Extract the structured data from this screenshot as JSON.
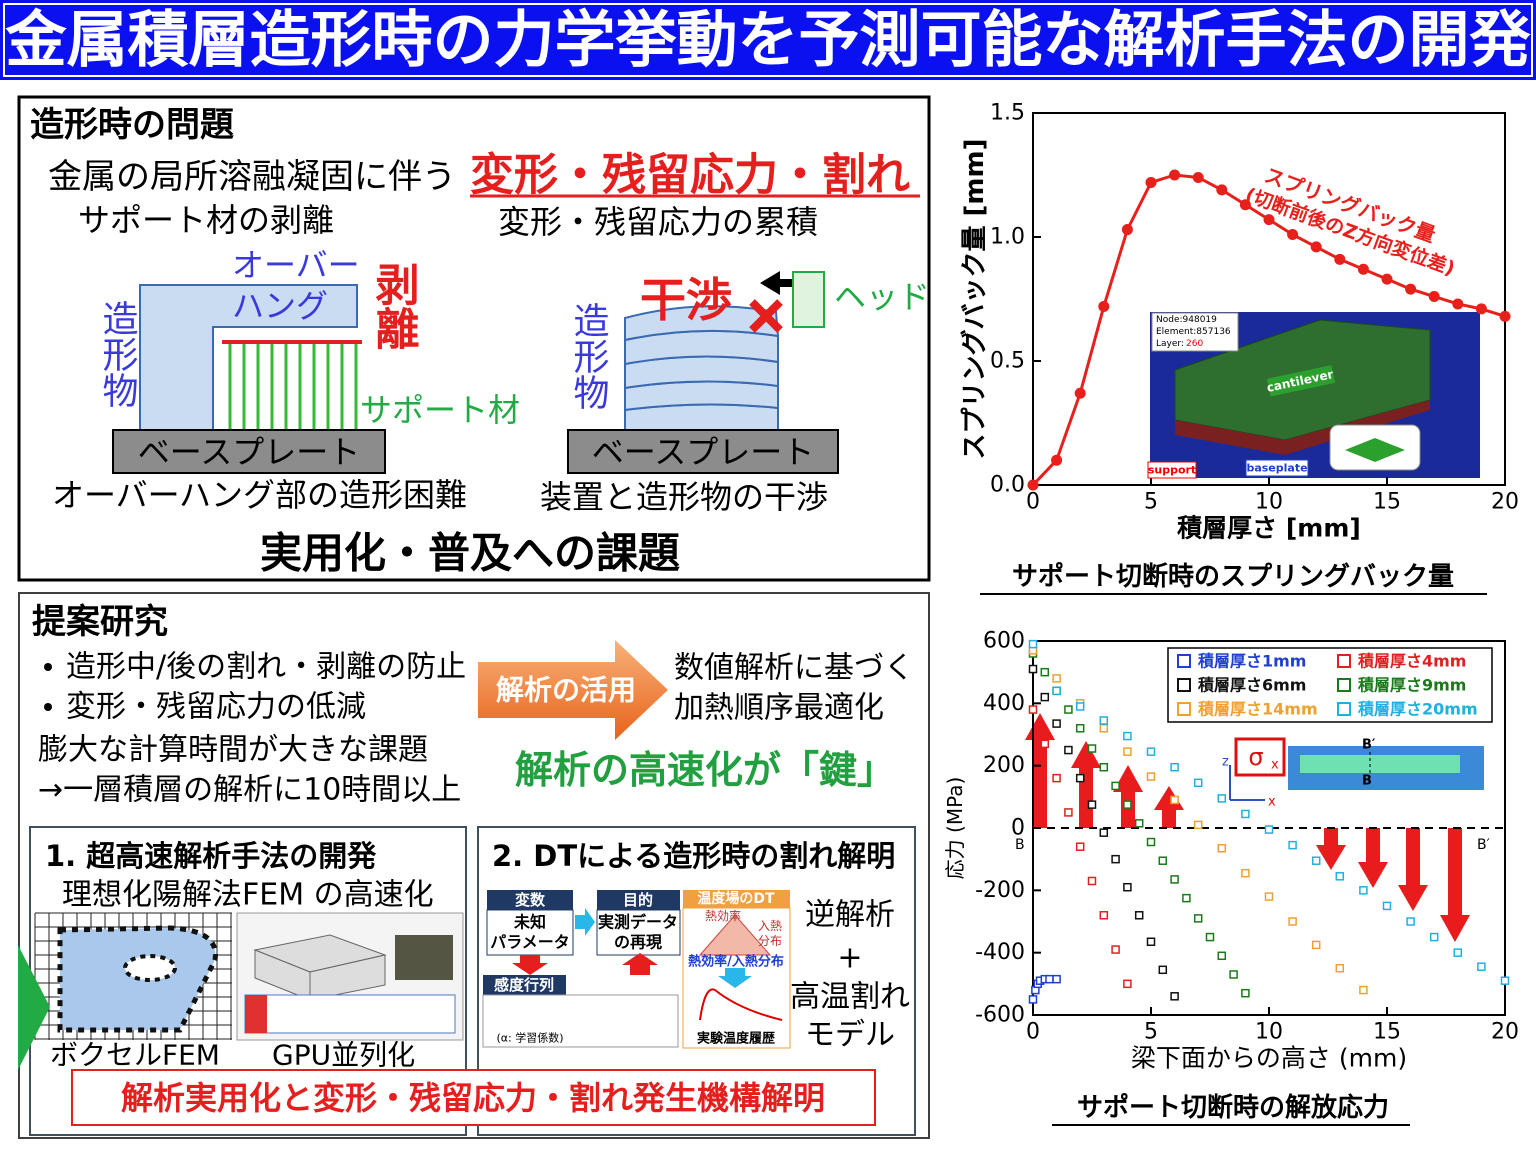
{
  "title": "金属積層造形時の力学挙動を予測可能な解析手法の開発",
  "problems": {
    "heading": "造形時の問題",
    "cause": "金属の局所溶融凝固に伴う",
    "effects": "変形・残留応力・割れ",
    "left_caption": "サポート材の剥離",
    "right_caption": "変形・残留応力の累積",
    "overhang": [
      "オーバー",
      "ハング"
    ],
    "peeling": "剥離",
    "build_left": "造形物",
    "support": "サポート材",
    "baseplate_left": "ベースプレート",
    "baseplate_right": "ベースプレート",
    "build_right": "造形物",
    "interference": "干渉",
    "head": "ヘッド",
    "left_bottom": "オーバーハング部の造形困難",
    "right_bottom": "装置と造形物の干渉",
    "conclusion": "実用化・普及への課題"
  },
  "proposal": {
    "heading": "提案研究",
    "bullets": [
      "造形中/後の割れ・剥離の防止",
      "変形・残留応力の低減"
    ],
    "issue": "膨大な計算時間が大きな課題",
    "issue_detail": "→一層積層の解析に10時間以上",
    "arrow": "解析の活用",
    "result": [
      "数値解析に基づく",
      "加熱順序最適化"
    ],
    "key": "解析の高速化が「鍵」",
    "part1": {
      "title": "1. 超高速解析手法の開発",
      "subtitle": "理想化陽解法FEM の高速化",
      "voxel": "ボクセルFEM",
      "gpu": "GPU並列化"
    },
    "part2": {
      "title": "2. DTによる造形時の割れ解明",
      "variable": "変数",
      "variable_body": [
        "未知",
        "パラメータ"
      ],
      "objective": "目的",
      "objective_body": [
        "実測データ",
        "の再現"
      ],
      "dt": "温度場のDT",
      "efficiency": "熱効率",
      "heat_input": [
        "入熱",
        "分布"
      ],
      "dt_caption": "熱効率/入熱分布",
      "sensitivity": "感度行列",
      "learning": "(α: 学習係数)",
      "history": "実験温度履歴",
      "inverse": "逆解析",
      "plus": "+",
      "hot_crack": [
        "高温割れ",
        "モデル"
      ]
    },
    "goal": "解析実用化と変形・残留応力・割れ発生機構解明"
  },
  "chart_data": [
    {
      "type": "line",
      "x": [
        0,
        1,
        2,
        3,
        4,
        5,
        6,
        7,
        8,
        9,
        10,
        11,
        12,
        13,
        14,
        15,
        16,
        17,
        18,
        19,
        20
      ],
      "values": [
        0,
        0.1,
        0.37,
        0.72,
        1.03,
        1.22,
        1.25,
        1.24,
        1.19,
        1.13,
        1.07,
        1.01,
        0.96,
        0.91,
        0.87,
        0.83,
        0.79,
        0.76,
        0.73,
        0.71,
        0.68
      ],
      "color": "#e8201c",
      "xlim": [
        0,
        20
      ],
      "ylim": [
        0,
        1.5
      ],
      "xticks": [
        0,
        5,
        10,
        15,
        20
      ],
      "yticks": [
        {
          "value": 0,
          "label": "0.0"
        },
        {
          "value": 0.5,
          "label": "0.5"
        },
        {
          "value": 1,
          "label": "1.0"
        },
        {
          "value": 1.5,
          "label": "1.5"
        }
      ],
      "xlabel": "積層厚さ [mm]",
      "ylabel": "スプリングバック量 [mm]",
      "caption": "サポート切断時のスプリングバック量",
      "annotation": [
        "スプリングバック量",
        "(切断前後のZ方向変位差)"
      ],
      "inset_labels": {
        "node": "Node:948019",
        "element": "Element:857136",
        "layer": "Layer:",
        "layer_value": "260",
        "cantilever": "cantilever",
        "support": "support",
        "baseplate": "baseplate"
      }
    },
    {
      "type": "scatter",
      "xlim": [
        0,
        20
      ],
      "ylim": [
        -600,
        600
      ],
      "xticks": [
        0,
        5,
        10,
        15,
        20
      ],
      "yticks": [
        -600,
        -400,
        -200,
        0,
        200,
        400,
        600
      ],
      "xlabel": "梁下面からの高さ (mm)",
      "ylabel": "応力 (MPa)",
      "caption": "サポート切断時の解放応力",
      "legend": "upper right",
      "series": [
        {
          "name": "積層厚さ1mm",
          "color": "#1f3fd0",
          "x": [
            0,
            0.1,
            0.2,
            0.3,
            0.5,
            0.7,
            1
          ],
          "values": [
            -550,
            -520,
            -500,
            -490,
            -485,
            -485,
            -485
          ]
        },
        {
          "name": "積層厚さ4mm",
          "color": "#e02020",
          "x": [
            0,
            0.5,
            1,
            1.5,
            2,
            2.5,
            3,
            3.5,
            4
          ],
          "values": [
            380,
            270,
            160,
            50,
            -60,
            -170,
            -280,
            -390,
            -500
          ]
        },
        {
          "name": "積層厚さ6mm",
          "color": "#111111",
          "x": [
            0,
            0.5,
            1,
            1.5,
            2,
            2.5,
            3,
            3.5,
            4,
            4.5,
            5,
            5.5,
            6
          ],
          "values": [
            510,
            420,
            335,
            250,
            160,
            75,
            -15,
            -100,
            -190,
            -280,
            -365,
            -455,
            -540
          ]
        },
        {
          "name": "積層厚さ9mm",
          "color": "#1a7a1a",
          "x": [
            0,
            0.5,
            1,
            1.5,
            2,
            2.5,
            3,
            3.5,
            4,
            4.5,
            5,
            5.5,
            6,
            6.5,
            7,
            7.5,
            8,
            8.5,
            9
          ],
          "values": [
            560,
            500,
            440,
            380,
            320,
            255,
            195,
            135,
            75,
            15,
            -45,
            -105,
            -165,
            -225,
            -290,
            -350,
            -410,
            -470,
            -530
          ]
        },
        {
          "name": "積層厚さ14mm",
          "color": "#f0a030",
          "x": [
            0,
            1,
            2,
            3,
            4,
            5,
            6,
            7,
            8,
            9,
            10,
            11,
            12,
            13,
            14
          ],
          "values": [
            570,
            480,
            400,
            320,
            245,
            165,
            90,
            10,
            -65,
            -145,
            -220,
            -300,
            -375,
            -450,
            -520
          ]
        },
        {
          "name": "積層厚さ20mm",
          "color": "#20b0e0",
          "x": [
            0,
            1,
            2,
            3,
            4,
            5,
            6,
            7,
            8,
            9,
            10,
            11,
            12,
            13,
            14,
            15,
            16,
            17,
            18,
            19,
            20
          ],
          "values": [
            590,
            440,
            390,
            345,
            295,
            245,
            195,
            145,
            95,
            45,
            -5,
            -55,
            -105,
            -155,
            -200,
            -250,
            -300,
            -350,
            -400,
            -445,
            -490
          ]
        }
      ],
      "annotations": {
        "b_left": "B",
        "b_right": "B′",
        "sigma": "σ",
        "sigma_sub": "x",
        "inset_b_top": "B′",
        "inset_b_bottom": "B",
        "axis_z": "z",
        "axis_x": "x"
      }
    }
  ]
}
